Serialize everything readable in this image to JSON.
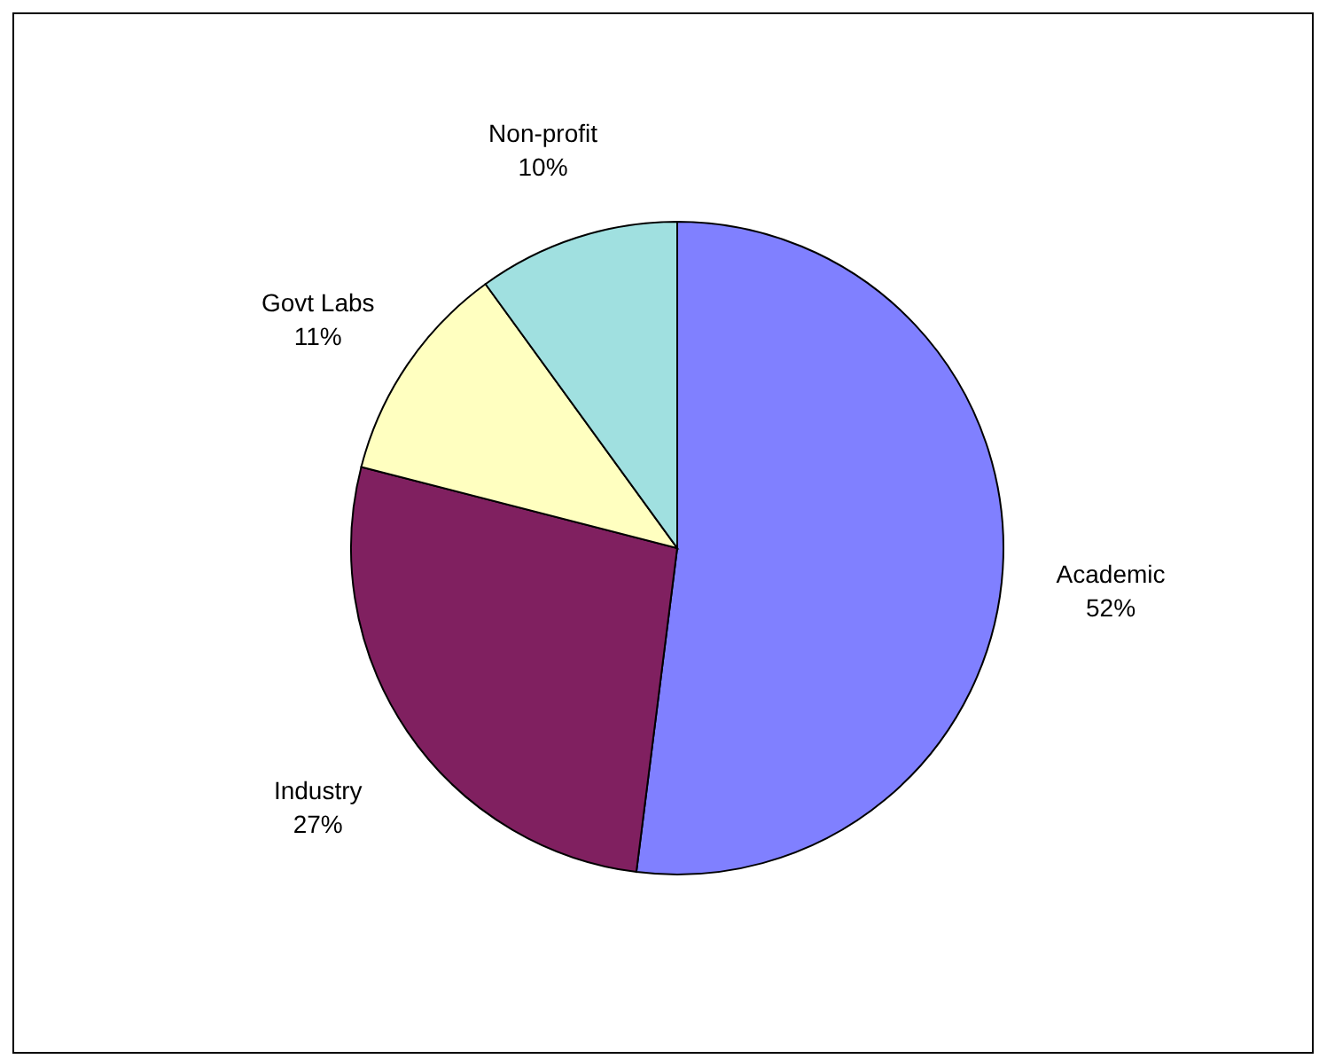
{
  "chart_data": {
    "type": "pie",
    "categories": [
      "Academic",
      "Industry",
      "Govt Labs",
      "Non-profit"
    ],
    "values": [
      52,
      27,
      11,
      10
    ],
    "colors": [
      "#8080ff",
      "#802060",
      "#ffffc0",
      "#a0e0e0"
    ],
    "value_labels": [
      "52%",
      "27%",
      "11%",
      "10%"
    ]
  }
}
